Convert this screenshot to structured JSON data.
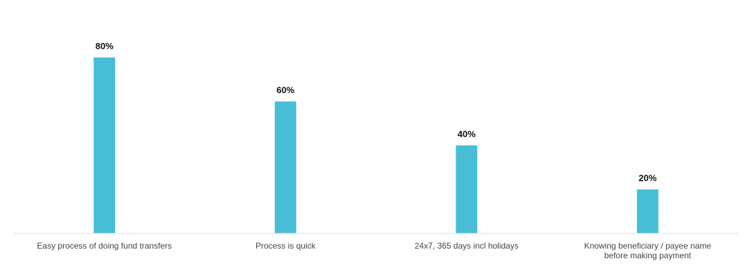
{
  "chart_data": {
    "type": "bar",
    "categories": [
      [
        "Easy process of doing fund transfers"
      ],
      [
        "Process is quick"
      ],
      [
        "24x7, 365 days incl holidays"
      ],
      [
        "Knowing beneficiary / payee name",
        "before making payment"
      ]
    ],
    "values": [
      80,
      60,
      40,
      20
    ],
    "value_labels": [
      "80%",
      "60%",
      "40%",
      "20%"
    ],
    "title": "",
    "xlabel": "",
    "ylabel": "",
    "ylim": [
      0,
      80
    ],
    "grid": false,
    "legend": "none",
    "colors": {
      "bar": "#47BED6",
      "baseline": "#DDDDDD",
      "value_text": "#111111",
      "category_text": "#444444"
    }
  }
}
